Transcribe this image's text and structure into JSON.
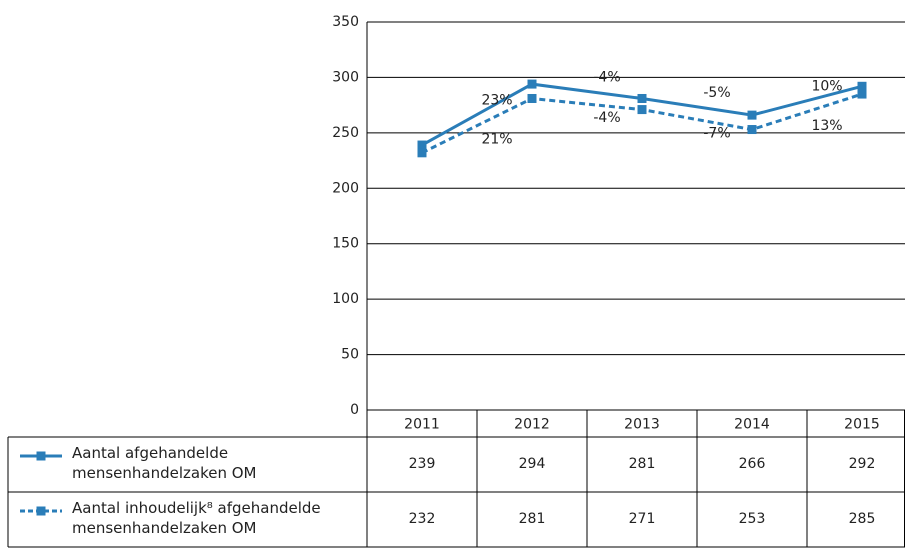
{
  "chart_data": {
    "type": "line",
    "categories": [
      "2011",
      "2012",
      "2013",
      "2014",
      "2015"
    ],
    "series": [
      {
        "name": "Aantal afgehandelde mensenhandelzaken OM",
        "color": "#2a7db8",
        "dash": false,
        "values": [
          239,
          294,
          281,
          266,
          292
        ],
        "change_labels": [
          "23%",
          "-4%",
          "-5%",
          "10%"
        ]
      },
      {
        "name": "Aantal inhoudelijk⁸ afgehandelde mensenhandelzaken OM",
        "color": "#2a7db8",
        "dash": true,
        "values": [
          232,
          281,
          271,
          253,
          285
        ],
        "change_labels": [
          "21%",
          "-4%",
          "-7%",
          "13%"
        ]
      }
    ],
    "ylim": [
      0,
      350
    ],
    "yticks": [
      0,
      50,
      100,
      150,
      200,
      250,
      300,
      350
    ],
    "grid": true
  }
}
